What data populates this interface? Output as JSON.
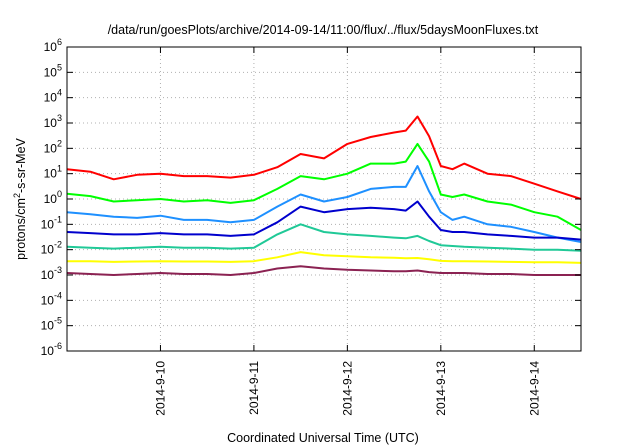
{
  "chart_data": {
    "type": "line",
    "title": "/data/run/goesPlots/archive/2014-09-14/11:00/flux/../flux/5daysMoonFluxes.txt",
    "xlabel": "Coordinated Universal Time (UTC)",
    "ylabel": {
      "pre": "protons/cm",
      "sup": "2",
      "post": "-s-sr-MeV"
    },
    "x_range": [
      "2014-09-09T00:00",
      "2014-09-14T12:00"
    ],
    "ylim": [
      1e-06,
      1000000.0
    ],
    "y_scale": "log",
    "grid": true,
    "x_ticks": [
      "2014-9-10",
      "2014-9-11",
      "2014-9-12",
      "2014-9-13",
      "2014-9-14"
    ],
    "y_ticks": [
      {
        "base": "10",
        "exp": "6"
      },
      {
        "base": "10",
        "exp": "5"
      },
      {
        "base": "10",
        "exp": "4"
      },
      {
        "base": "10",
        "exp": "3"
      },
      {
        "base": "10",
        "exp": "2"
      },
      {
        "base": "10",
        "exp": "1"
      },
      {
        "base": "10",
        "exp": "0"
      },
      {
        "base": "10",
        "exp": "-1"
      },
      {
        "base": "10",
        "exp": "-2"
      },
      {
        "base": "10",
        "exp": "-3"
      },
      {
        "base": "10",
        "exp": "-4"
      },
      {
        "base": "10",
        "exp": "-5"
      },
      {
        "base": "10",
        "exp": "-6"
      }
    ],
    "series": [
      {
        "color": "#ff0000",
        "values": [
          [
            "2014-09-09T00:00",
            15
          ],
          [
            "2014-09-09T06:00",
            12
          ],
          [
            "2014-09-09T12:00",
            6
          ],
          [
            "2014-09-09T18:00",
            9
          ],
          [
            "2014-09-10T00:00",
            10
          ],
          [
            "2014-09-10T06:00",
            8
          ],
          [
            "2014-09-10T12:00",
            8
          ],
          [
            "2014-09-10T18:00",
            7
          ],
          [
            "2014-09-11T00:00",
            9
          ],
          [
            "2014-09-11T06:00",
            18
          ],
          [
            "2014-09-11T12:00",
            60
          ],
          [
            "2014-09-11T18:00",
            40
          ],
          [
            "2014-09-12T00:00",
            150
          ],
          [
            "2014-09-12T06:00",
            280
          ],
          [
            "2014-09-12T12:00",
            420
          ],
          [
            "2014-09-12T15:00",
            500
          ],
          [
            "2014-09-12T18:00",
            1800
          ],
          [
            "2014-09-12T21:00",
            300
          ],
          [
            "2014-09-13T00:00",
            20
          ],
          [
            "2014-09-13T03:00",
            15
          ],
          [
            "2014-09-13T06:00",
            25
          ],
          [
            "2014-09-13T12:00",
            10
          ],
          [
            "2014-09-13T18:00",
            8
          ],
          [
            "2014-09-14T00:00",
            4
          ],
          [
            "2014-09-14T06:00",
            2
          ],
          [
            "2014-09-14T12:00",
            1
          ]
        ]
      },
      {
        "color": "#00ff00",
        "values": [
          [
            "2014-09-09T00:00",
            1.6
          ],
          [
            "2014-09-09T06:00",
            1.3
          ],
          [
            "2014-09-09T12:00",
            0.8
          ],
          [
            "2014-09-09T18:00",
            0.9
          ],
          [
            "2014-09-10T00:00",
            1.0
          ],
          [
            "2014-09-10T06:00",
            0.8
          ],
          [
            "2014-09-10T12:00",
            0.9
          ],
          [
            "2014-09-10T18:00",
            0.7
          ],
          [
            "2014-09-11T00:00",
            0.9
          ],
          [
            "2014-09-11T06:00",
            2.5
          ],
          [
            "2014-09-11T12:00",
            8
          ],
          [
            "2014-09-11T18:00",
            6
          ],
          [
            "2014-09-12T00:00",
            10
          ],
          [
            "2014-09-12T06:00",
            25
          ],
          [
            "2014-09-12T12:00",
            25
          ],
          [
            "2014-09-12T15:00",
            30
          ],
          [
            "2014-09-12T18:00",
            150
          ],
          [
            "2014-09-12T21:00",
            30
          ],
          [
            "2014-09-13T00:00",
            1.5
          ],
          [
            "2014-09-13T03:00",
            1.2
          ],
          [
            "2014-09-13T06:00",
            1.5
          ],
          [
            "2014-09-13T12:00",
            0.8
          ],
          [
            "2014-09-13T18:00",
            0.6
          ],
          [
            "2014-09-14T00:00",
            0.3
          ],
          [
            "2014-09-14T06:00",
            0.2
          ],
          [
            "2014-09-14T12:00",
            0.06
          ]
        ]
      },
      {
        "color": "#1e90ff",
        "values": [
          [
            "2014-09-09T00:00",
            0.3
          ],
          [
            "2014-09-09T06:00",
            0.25
          ],
          [
            "2014-09-09T12:00",
            0.2
          ],
          [
            "2014-09-09T18:00",
            0.18
          ],
          [
            "2014-09-10T00:00",
            0.22
          ],
          [
            "2014-09-10T06:00",
            0.15
          ],
          [
            "2014-09-10T12:00",
            0.15
          ],
          [
            "2014-09-10T18:00",
            0.12
          ],
          [
            "2014-09-11T00:00",
            0.15
          ],
          [
            "2014-09-11T06:00",
            0.5
          ],
          [
            "2014-09-11T12:00",
            1.5
          ],
          [
            "2014-09-11T18:00",
            0.8
          ],
          [
            "2014-09-12T00:00",
            1.2
          ],
          [
            "2014-09-12T06:00",
            2.5
          ],
          [
            "2014-09-12T12:00",
            3
          ],
          [
            "2014-09-12T15:00",
            3
          ],
          [
            "2014-09-12T18:00",
            20
          ],
          [
            "2014-09-12T21:00",
            2
          ],
          [
            "2014-09-13T00:00",
            0.3
          ],
          [
            "2014-09-13T03:00",
            0.15
          ],
          [
            "2014-09-13T06:00",
            0.2
          ],
          [
            "2014-09-13T12:00",
            0.1
          ],
          [
            "2014-09-13T18:00",
            0.08
          ],
          [
            "2014-09-14T00:00",
            0.05
          ],
          [
            "2014-09-14T06:00",
            0.03
          ],
          [
            "2014-09-14T12:00",
            0.02
          ]
        ]
      },
      {
        "color": "#0000cd",
        "values": [
          [
            "2014-09-09T00:00",
            0.05
          ],
          [
            "2014-09-09T06:00",
            0.045
          ],
          [
            "2014-09-09T12:00",
            0.04
          ],
          [
            "2014-09-09T18:00",
            0.04
          ],
          [
            "2014-09-10T00:00",
            0.045
          ],
          [
            "2014-09-10T06:00",
            0.04
          ],
          [
            "2014-09-10T12:00",
            0.04
          ],
          [
            "2014-09-10T18:00",
            0.035
          ],
          [
            "2014-09-11T00:00",
            0.04
          ],
          [
            "2014-09-11T06:00",
            0.12
          ],
          [
            "2014-09-11T12:00",
            0.5
          ],
          [
            "2014-09-11T18:00",
            0.3
          ],
          [
            "2014-09-12T00:00",
            0.4
          ],
          [
            "2014-09-12T06:00",
            0.45
          ],
          [
            "2014-09-12T12:00",
            0.4
          ],
          [
            "2014-09-12T15:00",
            0.35
          ],
          [
            "2014-09-12T18:00",
            0.8
          ],
          [
            "2014-09-12T21:00",
            0.2
          ],
          [
            "2014-09-13T00:00",
            0.06
          ],
          [
            "2014-09-13T03:00",
            0.05
          ],
          [
            "2014-09-13T06:00",
            0.05
          ],
          [
            "2014-09-13T12:00",
            0.04
          ],
          [
            "2014-09-13T18:00",
            0.035
          ],
          [
            "2014-09-14T00:00",
            0.03
          ],
          [
            "2014-09-14T06:00",
            0.03
          ],
          [
            "2014-09-14T12:00",
            0.025
          ]
        ]
      },
      {
        "color": "#20c997",
        "values": [
          [
            "2014-09-09T00:00",
            0.013
          ],
          [
            "2014-09-09T06:00",
            0.012
          ],
          [
            "2014-09-09T12:00",
            0.011
          ],
          [
            "2014-09-09T18:00",
            0.012
          ],
          [
            "2014-09-10T00:00",
            0.013
          ],
          [
            "2014-09-10T06:00",
            0.012
          ],
          [
            "2014-09-10T12:00",
            0.012
          ],
          [
            "2014-09-10T18:00",
            0.011
          ],
          [
            "2014-09-11T00:00",
            0.012
          ],
          [
            "2014-09-11T06:00",
            0.04
          ],
          [
            "2014-09-11T12:00",
            0.1
          ],
          [
            "2014-09-11T18:00",
            0.05
          ],
          [
            "2014-09-12T00:00",
            0.04
          ],
          [
            "2014-09-12T06:00",
            0.035
          ],
          [
            "2014-09-12T12:00",
            0.03
          ],
          [
            "2014-09-12T15:00",
            0.028
          ],
          [
            "2014-09-12T18:00",
            0.035
          ],
          [
            "2014-09-12T21:00",
            0.022
          ],
          [
            "2014-09-13T00:00",
            0.015
          ],
          [
            "2014-09-13T03:00",
            0.014
          ],
          [
            "2014-09-13T06:00",
            0.013
          ],
          [
            "2014-09-13T12:00",
            0.012
          ],
          [
            "2014-09-13T18:00",
            0.011
          ],
          [
            "2014-09-14T00:00",
            0.01
          ],
          [
            "2014-09-14T06:00",
            0.01
          ],
          [
            "2014-09-14T12:00",
            0.009
          ]
        ]
      },
      {
        "color": "#ffff00",
        "values": [
          [
            "2014-09-09T00:00",
            0.0035
          ],
          [
            "2014-09-09T06:00",
            0.0035
          ],
          [
            "2014-09-09T12:00",
            0.0033
          ],
          [
            "2014-09-09T18:00",
            0.0034
          ],
          [
            "2014-09-10T00:00",
            0.0035
          ],
          [
            "2014-09-10T06:00",
            0.0034
          ],
          [
            "2014-09-10T12:00",
            0.0034
          ],
          [
            "2014-09-10T18:00",
            0.0033
          ],
          [
            "2014-09-11T00:00",
            0.0035
          ],
          [
            "2014-09-11T06:00",
            0.005
          ],
          [
            "2014-09-11T12:00",
            0.008
          ],
          [
            "2014-09-11T18:00",
            0.006
          ],
          [
            "2014-09-12T00:00",
            0.0055
          ],
          [
            "2014-09-12T06:00",
            0.005
          ],
          [
            "2014-09-12T12:00",
            0.0048
          ],
          [
            "2014-09-12T15:00",
            0.0046
          ],
          [
            "2014-09-12T18:00",
            0.0047
          ],
          [
            "2014-09-12T21:00",
            0.0042
          ],
          [
            "2014-09-13T00:00",
            0.0036
          ],
          [
            "2014-09-13T03:00",
            0.0035
          ],
          [
            "2014-09-13T06:00",
            0.0035
          ],
          [
            "2014-09-13T12:00",
            0.0034
          ],
          [
            "2014-09-13T18:00",
            0.0033
          ],
          [
            "2014-09-14T00:00",
            0.0032
          ],
          [
            "2014-09-14T06:00",
            0.0032
          ],
          [
            "2014-09-14T12:00",
            0.003
          ]
        ]
      },
      {
        "color": "#8b2252",
        "values": [
          [
            "2014-09-09T00:00",
            0.0012
          ],
          [
            "2014-09-09T06:00",
            0.0011
          ],
          [
            "2014-09-09T12:00",
            0.001
          ],
          [
            "2014-09-09T18:00",
            0.0011
          ],
          [
            "2014-09-10T00:00",
            0.0012
          ],
          [
            "2014-09-10T06:00",
            0.0011
          ],
          [
            "2014-09-10T12:00",
            0.0011
          ],
          [
            "2014-09-10T18:00",
            0.001
          ],
          [
            "2014-09-11T00:00",
            0.0012
          ],
          [
            "2014-09-11T06:00",
            0.0018
          ],
          [
            "2014-09-11T12:00",
            0.0022
          ],
          [
            "2014-09-11T18:00",
            0.0018
          ],
          [
            "2014-09-12T00:00",
            0.0016
          ],
          [
            "2014-09-12T06:00",
            0.0015
          ],
          [
            "2014-09-12T12:00",
            0.0014
          ],
          [
            "2014-09-12T15:00",
            0.0014
          ],
          [
            "2014-09-12T18:00",
            0.0015
          ],
          [
            "2014-09-12T21:00",
            0.0013
          ],
          [
            "2014-09-13T00:00",
            0.0012
          ],
          [
            "2014-09-13T03:00",
            0.0012
          ],
          [
            "2014-09-13T06:00",
            0.0012
          ],
          [
            "2014-09-13T12:00",
            0.0011
          ],
          [
            "2014-09-13T18:00",
            0.0011
          ],
          [
            "2014-09-14T00:00",
            0.001
          ],
          [
            "2014-09-14T06:00",
            0.001
          ],
          [
            "2014-09-14T12:00",
            0.001
          ]
        ]
      }
    ]
  }
}
